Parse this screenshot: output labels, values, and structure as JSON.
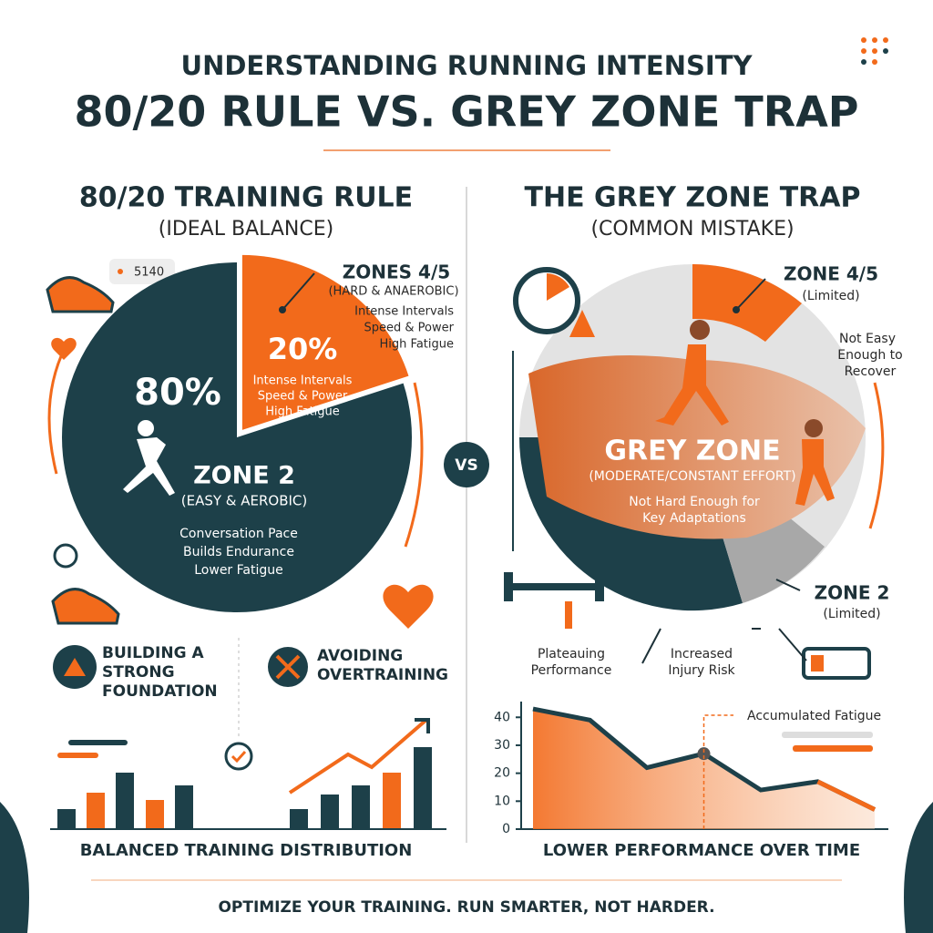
{
  "header": {
    "kicker": "UNDERSTANDING RUNNING INTENSITY",
    "title": "80/20 RULE VS. GREY ZONE TRAP"
  },
  "left": {
    "title": "80/20 TRAINING RULE",
    "subtitle": "(IDEAL BALANCE)",
    "badge": "5140",
    "hard_heading": "ZONES 4/5",
    "hard_sub": "(HARD & ANAEROBIC)",
    "hard_notes": [
      "Intense Intervals",
      "Speed & Power",
      "High Fatigue"
    ],
    "easy_heading": "ZONE 2",
    "easy_sub": "(EASY & AEROBIC)",
    "easy_notes": [
      "Conversation Pace",
      "Builds Endurance",
      "Lower Fatigue"
    ],
    "benefit_1": [
      "BUILDING A",
      "STRONG",
      "FOUNDATION"
    ],
    "benefit_2": [
      "AVOIDING",
      "OVERTRAINING"
    ],
    "caption": "BALANCED TRAINING DISTRIBUTION"
  },
  "chart_data": {
    "type": "pie",
    "categories": [
      "ZONE 2",
      "ZONES 4/5"
    ],
    "values": [
      80,
      20
    ],
    "value_labels": [
      "80%",
      "20%"
    ],
    "colors": [
      "#1d4049",
      "#f26a1b"
    ]
  },
  "vs": "VS",
  "right": {
    "title": "THE GREY ZONE TRAP",
    "subtitle": "(COMMON MISTAKE)",
    "top_heading": "ZONE 4/5",
    "top_sub": "(Limited)",
    "top_note": [
      "Not Easy",
      "Enough to",
      "Recover"
    ],
    "grey_heading": "GREY ZONE",
    "grey_sub": "(MODERATE/CONSTANT EFFORT)",
    "grey_note": [
      "Not Hard Enough for",
      "Key Adaptations"
    ],
    "bottom_heading": "ZONE 2",
    "bottom_sub": "(Limited)",
    "effect_1": [
      "Plateauing",
      "Performance"
    ],
    "effect_2": [
      "Increased",
      "Injury Risk"
    ],
    "chart": {
      "type": "line",
      "categories": [
        null,
        null,
        null,
        null,
        null,
        null,
        null
      ],
      "values": [
        43,
        39,
        22,
        27,
        14,
        17,
        7
      ],
      "color": "#1d4049",
      "area_color": "#f26a1b",
      "ylim": [
        0,
        44
      ],
      "yticks": [
        0,
        10,
        20,
        30,
        40
      ],
      "annotation": "Accumulated Fatigue",
      "annotation_index": 3,
      "caption": "LOWER PERFORMANCE OVER TIME"
    }
  },
  "footer": "OPTIMIZE YOUR TRAINING. RUN SMARTER, NOT HARDER."
}
